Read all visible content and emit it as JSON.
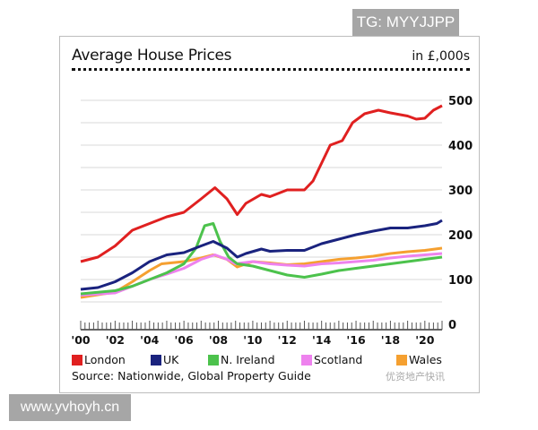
{
  "watermarks": {
    "top": "TG: MYYJJPP",
    "bottom": "www.yvhoyh.cn",
    "logo_text": "优资地产快讯"
  },
  "chart_data": {
    "type": "line",
    "title": "Average House Prices",
    "unit_label": "in £,000s",
    "source": "Source: Nationwide, Global Property Guide",
    "xlim": [
      2000,
      2021
    ],
    "ylim": [
      0,
      500
    ],
    "yticks": [
      0,
      100,
      200,
      300,
      400,
      500
    ],
    "ytick_labels": [
      "0",
      "100",
      "200",
      "300",
      "400",
      "500"
    ],
    "xticks": [
      2000,
      2002,
      2004,
      2006,
      2008,
      2010,
      2012,
      2014,
      2016,
      2018,
      2020
    ],
    "xtick_labels": [
      "'00",
      "'02",
      "'04",
      "'06",
      "'08",
      "'10",
      "'12",
      "'14",
      "'16",
      "'18",
      "'20"
    ],
    "grid": "horizontal every 50",
    "legend_position": "bottom",
    "series": [
      {
        "name": "London",
        "color": "#e02020",
        "x": [
          2000,
          2001,
          2002,
          2003,
          2004,
          2005,
          2006,
          2007,
          2007.8,
          2008.5,
          2009.1,
          2009.6,
          2010.5,
          2011,
          2012,
          2013,
          2013.5,
          2014,
          2014.5,
          2015.2,
          2015.8,
          2016.5,
          2017.3,
          2018,
          2019,
          2019.5,
          2020,
          2020.5,
          2021
        ],
        "y": [
          140,
          150,
          175,
          210,
          225,
          240,
          250,
          280,
          305,
          280,
          245,
          270,
          290,
          285,
          300,
          300,
          320,
          360,
          400,
          410,
          450,
          470,
          478,
          472,
          465,
          458,
          460,
          478,
          488
        ]
      },
      {
        "name": "UK",
        "color": "#1a237e",
        "x": [
          2000,
          2001,
          2002,
          2003,
          2004,
          2005,
          2006,
          2007,
          2007.7,
          2008.5,
          2009.1,
          2009.6,
          2010.5,
          2011,
          2012,
          2013,
          2014,
          2015,
          2016,
          2017,
          2018,
          2019,
          2020,
          2020.7,
          2021
        ],
        "y": [
          78,
          82,
          95,
          115,
          140,
          155,
          160,
          175,
          185,
          170,
          150,
          158,
          168,
          163,
          165,
          165,
          180,
          190,
          200,
          208,
          215,
          215,
          220,
          225,
          232
        ]
      },
      {
        "name": "N. Ireland",
        "color": "#4cc24c",
        "x": [
          2000,
          2002,
          2003,
          2004,
          2005,
          2006,
          2006.7,
          2007.2,
          2007.7,
          2008.1,
          2008.6,
          2009.1,
          2010,
          2011,
          2012,
          2013,
          2014,
          2015,
          2016,
          2017,
          2018,
          2019,
          2020,
          2021
        ],
        "y": [
          68,
          75,
          85,
          100,
          115,
          135,
          170,
          220,
          225,
          185,
          150,
          135,
          130,
          120,
          110,
          105,
          112,
          120,
          125,
          130,
          135,
          140,
          145,
          150
        ]
      },
      {
        "name": "Scotland",
        "color": "#ee82ee",
        "x": [
          2000,
          2002,
          2003,
          2004,
          2005,
          2006,
          2007,
          2007.8,
          2008.5,
          2009,
          2010,
          2011,
          2012,
          2013,
          2014,
          2015,
          2016,
          2017,
          2018,
          2019,
          2020,
          2021
        ],
        "y": [
          65,
          70,
          85,
          100,
          112,
          125,
          145,
          155,
          145,
          135,
          140,
          135,
          132,
          130,
          135,
          137,
          140,
          143,
          148,
          152,
          155,
          158
        ]
      },
      {
        "name": "Wales",
        "color": "#f5a030",
        "x": [
          2000,
          2002,
          2003,
          2004,
          2004.7,
          2006,
          2007,
          2007.7,
          2008.5,
          2009.1,
          2010,
          2011,
          2012,
          2013,
          2014,
          2015,
          2016,
          2017,
          2018,
          2019,
          2020,
          2021
        ],
        "y": [
          60,
          72,
          95,
          120,
          135,
          140,
          148,
          155,
          145,
          128,
          140,
          137,
          133,
          135,
          140,
          145,
          148,
          152,
          158,
          162,
          165,
          170
        ]
      }
    ]
  }
}
